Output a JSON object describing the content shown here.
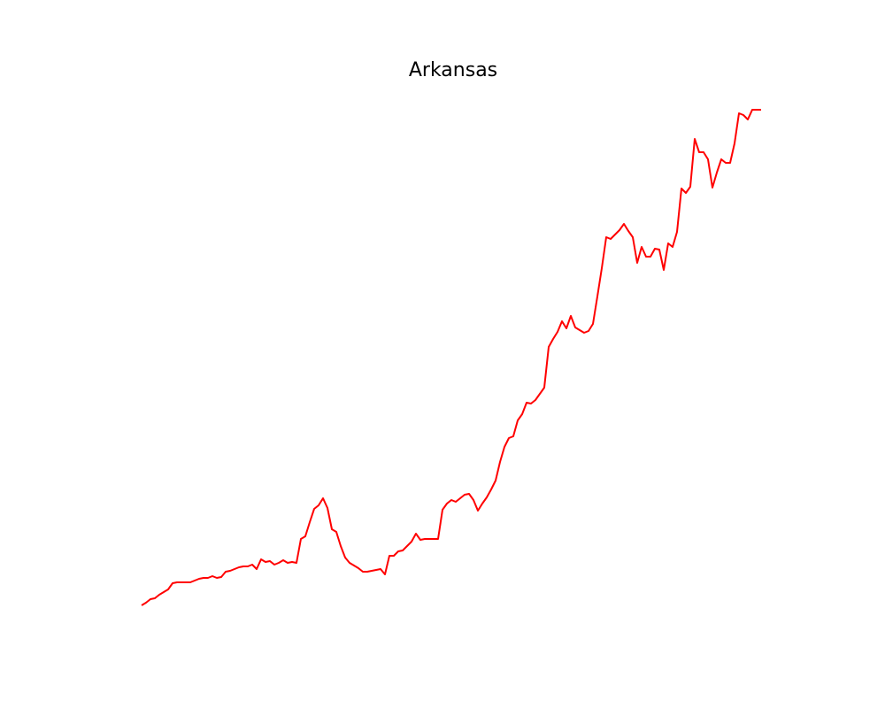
{
  "chart_data": {
    "type": "line",
    "title": "Arkansas",
    "color": "#ff0000",
    "xlim": [
      -7,
      148
    ],
    "ylim": [
      96,
      704
    ],
    "values": [
      116,
      119,
      123,
      124,
      128,
      131,
      134,
      141,
      142,
      142,
      142,
      142,
      144,
      146,
      147,
      147,
      149,
      147,
      148,
      154,
      155,
      157,
      159,
      160,
      160,
      162,
      157,
      168,
      165,
      166,
      162,
      164,
      167,
      164,
      165,
      164,
      191,
      194,
      210,
      225,
      229,
      237,
      226,
      202,
      199,
      183,
      170,
      164,
      161,
      158,
      154,
      154,
      155,
      156,
      157,
      151,
      172,
      172,
      177,
      178,
      183,
      188,
      197,
      190,
      191,
      191,
      191,
      191,
      224,
      231,
      235,
      233,
      237,
      241,
      242,
      235,
      223,
      231,
      238,
      247,
      257,
      278,
      295,
      305,
      307,
      325,
      332,
      345,
      344,
      348,
      355,
      362,
      408,
      417,
      425,
      437,
      429,
      443,
      430,
      427,
      424,
      426,
      434,
      465,
      497,
      532,
      530,
      535,
      540,
      547,
      539,
      532,
      503,
      521,
      510,
      510,
      519,
      518,
      495,
      525,
      521,
      538,
      587,
      582,
      589,
      643,
      628,
      628,
      620,
      588,
      605,
      620,
      616,
      616,
      638,
      672,
      670,
      665,
      676,
      676,
      676
    ]
  }
}
